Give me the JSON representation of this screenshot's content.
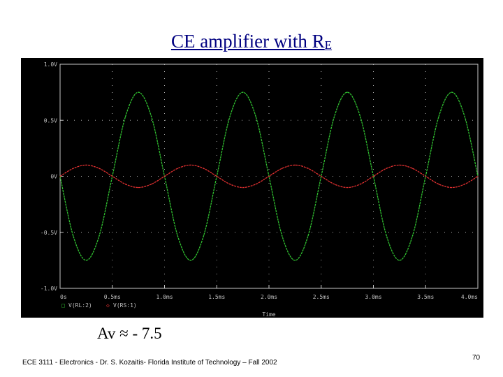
{
  "slide": {
    "title": "CE amplifier with R",
    "title_subscript": "E",
    "gain_label": "Av ≈ - 7.5",
    "footer": "ECE 3111 - Electronics - Dr. S. Kozaitis- Florida Institute of Technology – Fall 2002",
    "page_number": "70"
  },
  "chart_data": {
    "type": "line",
    "background": "#000000",
    "grid": true,
    "grid_color": "#b0b0b0",
    "xlabel": "Time",
    "x_ticks": [
      "0s",
      "0.5ms",
      "1.0ms",
      "1.5ms",
      "2.0ms",
      "2.5ms",
      "3.0ms",
      "3.5ms",
      "4.0ms"
    ],
    "xlim": [
      0,
      4.0
    ],
    "x_unit": "ms",
    "y_ticks": [
      "1.0V",
      "0.5V",
      "0V",
      "-0.5V",
      "-1.0V"
    ],
    "ylim": [
      -1.0,
      1.0
    ],
    "legend_position": "bottom-left",
    "series": [
      {
        "name": "V(RL:2)",
        "color": "#30c030",
        "marker": "□",
        "x": [
          0,
          0.125,
          0.25,
          0.375,
          0.5,
          0.625,
          0.75,
          0.875,
          1.0,
          1.125,
          1.25,
          1.375,
          1.5,
          1.625,
          1.75,
          1.875,
          2.0,
          2.125,
          2.25,
          2.375,
          2.5,
          2.625,
          2.75,
          2.875,
          3.0,
          3.125,
          3.25,
          3.375,
          3.5,
          3.625,
          3.75,
          3.875,
          4.0
        ],
        "values": [
          0,
          -0.53,
          -0.75,
          -0.53,
          0,
          0.53,
          0.75,
          0.53,
          0,
          -0.53,
          -0.75,
          -0.53,
          0,
          0.53,
          0.75,
          0.53,
          0,
          -0.53,
          -0.75,
          -0.53,
          0,
          0.53,
          0.75,
          0.53,
          0,
          -0.53,
          -0.75,
          -0.53,
          0,
          0.53,
          0.75,
          0.53,
          0
        ]
      },
      {
        "name": "V(RS:1)",
        "color": "#e03030",
        "marker": "◇",
        "x": [
          0,
          0.125,
          0.25,
          0.375,
          0.5,
          0.625,
          0.75,
          0.875,
          1.0,
          1.125,
          1.25,
          1.375,
          1.5,
          1.625,
          1.75,
          1.875,
          2.0,
          2.125,
          2.25,
          2.375,
          2.5,
          2.625,
          2.75,
          2.875,
          3.0,
          3.125,
          3.25,
          3.375,
          3.5,
          3.625,
          3.75,
          3.875,
          4.0
        ],
        "values": [
          0,
          0.07,
          0.1,
          0.07,
          0,
          -0.07,
          -0.1,
          -0.07,
          0,
          0.07,
          0.1,
          0.07,
          0,
          -0.07,
          -0.1,
          -0.07,
          0,
          0.07,
          0.1,
          0.07,
          0,
          -0.07,
          -0.1,
          -0.07,
          0,
          0.07,
          0.1,
          0.07,
          0,
          -0.07,
          -0.1,
          -0.07,
          0
        ]
      }
    ]
  }
}
